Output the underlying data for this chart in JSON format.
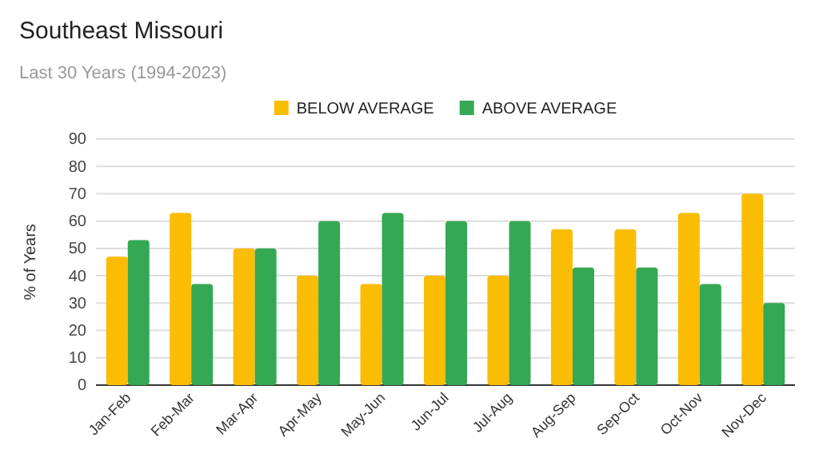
{
  "chart_data": {
    "type": "bar",
    "title": "Southeast Missouri",
    "subtitle": "Last 30 Years (1994-2023)",
    "ylabel": "% of Years",
    "categories": [
      "Jan-Feb",
      "Feb-Mar",
      "Mar-Apr",
      "Apr-May",
      "May-Jun",
      "Jun-Jul",
      "Jul-Aug",
      "Aug-Sep",
      "Sep-Oct",
      "Oct-Nov",
      "Nov-Dec"
    ],
    "series": [
      {
        "name": "BELOW AVERAGE",
        "color": "#fbbc04",
        "values": [
          47,
          63,
          50,
          40,
          37,
          40,
          40,
          57,
          57,
          63,
          70
        ]
      },
      {
        "name": "ABOVE AVERAGE",
        "color": "#34a853",
        "values": [
          53,
          37,
          50,
          60,
          63,
          60,
          60,
          43,
          43,
          37,
          30
        ]
      }
    ],
    "ylim": [
      0,
      90
    ],
    "yticks": [
      0,
      10,
      20,
      30,
      40,
      50,
      60,
      70,
      80,
      90
    ],
    "grid": "y",
    "legend": "top"
  }
}
